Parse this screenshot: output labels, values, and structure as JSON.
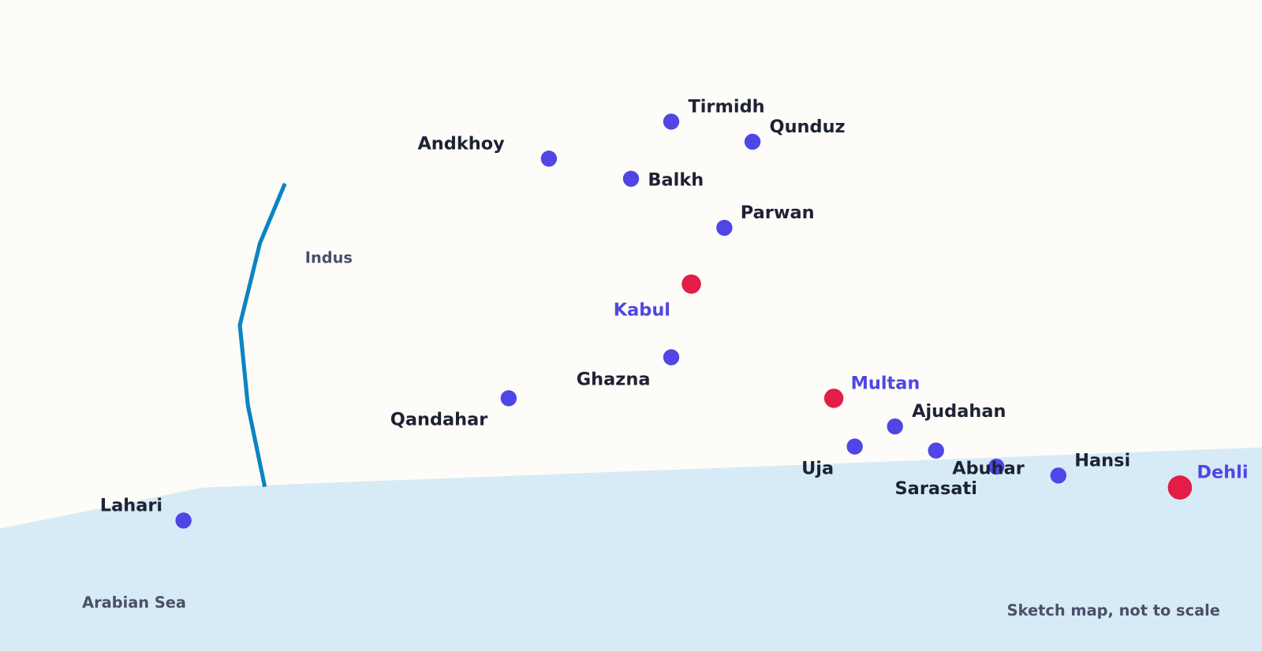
{
  "places": [
    {
      "name": "Tirmidh"
    },
    {
      "name": "Qunduz"
    },
    {
      "name": "Andkhoy"
    },
    {
      "name": "Balkh"
    },
    {
      "name": "Parwan"
    },
    {
      "name": "Kabul"
    },
    {
      "name": "Ghazna"
    },
    {
      "name": "Qandahar"
    },
    {
      "name": "Multan"
    },
    {
      "name": "Ajudahan"
    },
    {
      "name": "Uja"
    },
    {
      "name": "Sarasati"
    },
    {
      "name": "Abuhar"
    },
    {
      "name": "Hansi"
    },
    {
      "name": "Dehli"
    },
    {
      "name": "Lahari"
    }
  ],
  "labels": {
    "river": "Indus",
    "sea": "Arabian Sea",
    "note": "Sketch map, not to scale"
  }
}
